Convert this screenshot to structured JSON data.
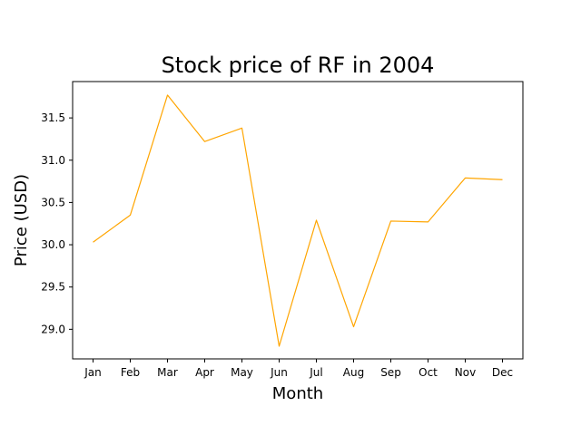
{
  "chart_data": {
    "type": "line",
    "title": "Stock price of RF in 2004",
    "xlabel": "Month",
    "ylabel": "Price (USD)",
    "categories": [
      "Jan",
      "Feb",
      "Mar",
      "Apr",
      "May",
      "Jun",
      "Jul",
      "Aug",
      "Sep",
      "Oct",
      "Nov",
      "Dec"
    ],
    "series": [
      {
        "values": [
          30.03,
          30.35,
          31.77,
          31.22,
          31.38,
          28.8,
          30.29,
          29.03,
          30.28,
          30.27,
          30.79,
          30.77
        ],
        "color": "#ffa500"
      }
    ],
    "ylim": [
      28.65,
      31.93
    ],
    "yticks": [
      29.0,
      29.5,
      30.0,
      30.5,
      31.0,
      31.5
    ],
    "ytick_labels": [
      "29.0",
      "29.5",
      "30.0",
      "30.5",
      "31.0",
      "31.5"
    ],
    "grid": false,
    "legend": false
  }
}
